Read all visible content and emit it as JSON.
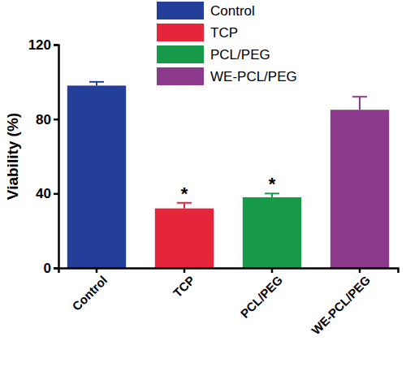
{
  "chart_data": {
    "type": "bar",
    "y_label": "Viability (%)",
    "categories": [
      "Control",
      "TCP",
      "PCL/PEG",
      "WE-PCL/PEG"
    ],
    "values": [
      98,
      32,
      38,
      85
    ],
    "errors": [
      2,
      3,
      2,
      7
    ],
    "annotations": [
      null,
      "*",
      "*",
      null
    ],
    "colors": [
      "#233f99",
      "#e4253a",
      "#17994a",
      "#8c3b8c"
    ],
    "ylim": [
      0,
      120
    ],
    "yticks": [
      0,
      40,
      80,
      120
    ],
    "legend": "top",
    "grid": false
  }
}
